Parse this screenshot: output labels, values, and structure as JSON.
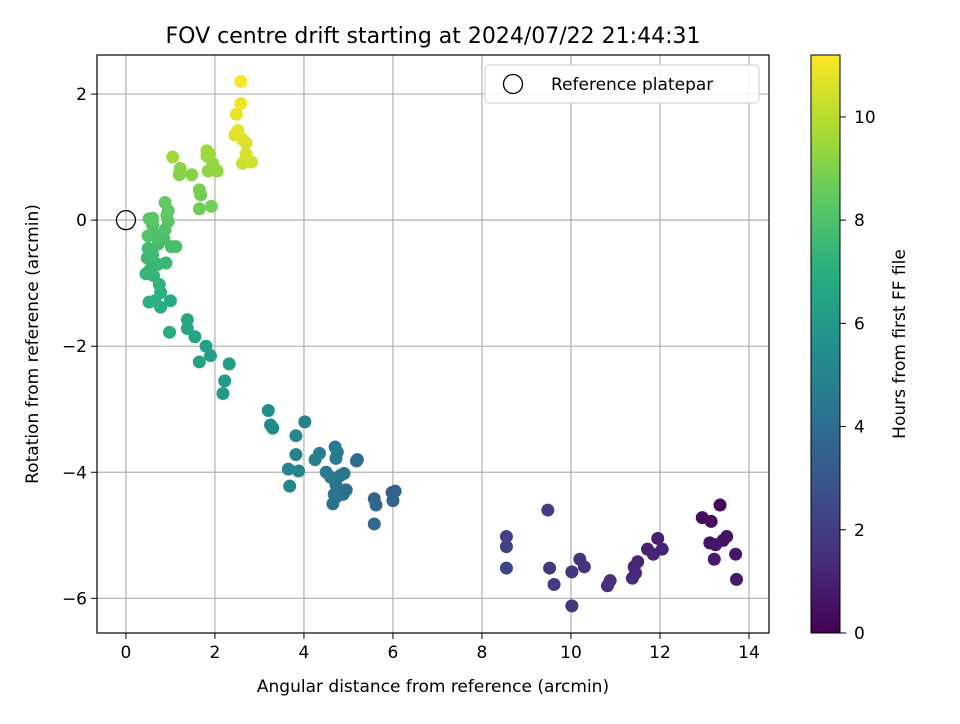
{
  "chart_data": {
    "type": "scatter",
    "title": "FOV centre drift starting at 2024/07/22 21:44:31",
    "xlabel": "Angular distance from reference (arcmin)",
    "ylabel": "Rotation from reference (arcmin)",
    "xlim": [
      -0.65,
      14.45
    ],
    "ylim": [
      -6.55,
      2.62
    ],
    "xticks": [
      0,
      2,
      4,
      6,
      8,
      10,
      12,
      14
    ],
    "yticks": [
      -6,
      -4,
      -2,
      0,
      2
    ],
    "grid": true,
    "legend": {
      "position": "top-right",
      "entries": [
        "Reference platepar"
      ]
    },
    "reference_point": {
      "x": 0,
      "y": 0
    },
    "colorbar": {
      "label": "Hours from first FF file",
      "range": [
        0,
        11.2
      ],
      "ticks": [
        0,
        2,
        4,
        6,
        8,
        10
      ],
      "colormap": "viridis"
    },
    "points": [
      [
        13.35,
        -4.52,
        0.2
      ],
      [
        12.95,
        -4.72,
        0.35
      ],
      [
        13.15,
        -4.78,
        0.4
      ],
      [
        13.5,
        -5.02,
        0.5
      ],
      [
        13.42,
        -5.08,
        0.55
      ],
      [
        13.12,
        -5.12,
        0.6
      ],
      [
        13.25,
        -5.15,
        0.65
      ],
      [
        13.7,
        -5.3,
        0.7
      ],
      [
        13.22,
        -5.38,
        0.75
      ],
      [
        13.72,
        -5.7,
        0.8
      ],
      [
        11.95,
        -5.05,
        0.95
      ],
      [
        11.72,
        -5.22,
        1.05
      ],
      [
        12.05,
        -5.22,
        1.1
      ],
      [
        11.85,
        -5.3,
        1.15
      ],
      [
        11.5,
        -5.42,
        1.2
      ],
      [
        11.42,
        -5.5,
        1.25
      ],
      [
        11.45,
        -5.6,
        1.3
      ],
      [
        11.38,
        -5.68,
        1.35
      ],
      [
        10.88,
        -5.72,
        1.5
      ],
      [
        10.82,
        -5.8,
        1.55
      ],
      [
        10.2,
        -5.38,
        1.65
      ],
      [
        10.3,
        -5.5,
        1.7
      ],
      [
        10.02,
        -5.58,
        1.75
      ],
      [
        10.02,
        -6.12,
        1.8
      ],
      [
        9.52,
        -5.52,
        1.85
      ],
      [
        9.62,
        -5.78,
        1.9
      ],
      [
        9.48,
        -4.6,
        2.0
      ],
      [
        8.55,
        -5.02,
        2.15
      ],
      [
        8.55,
        -5.18,
        2.2
      ],
      [
        8.55,
        -5.52,
        2.25
      ],
      [
        6.05,
        -4.3,
        3.5
      ],
      [
        5.98,
        -4.32,
        3.55
      ],
      [
        6.0,
        -4.45,
        3.6
      ],
      [
        5.58,
        -4.42,
        3.65
      ],
      [
        5.62,
        -4.52,
        3.7
      ],
      [
        5.58,
        -4.82,
        3.75
      ],
      [
        5.2,
        -3.8,
        3.9
      ],
      [
        5.18,
        -3.82,
        3.95
      ],
      [
        4.95,
        -4.28,
        4.05
      ],
      [
        4.88,
        -4.35,
        4.1
      ],
      [
        4.75,
        -4.38,
        4.15
      ],
      [
        4.65,
        -4.5,
        4.2
      ],
      [
        4.68,
        -4.35,
        4.25
      ],
      [
        4.72,
        -4.2,
        4.3
      ],
      [
        4.9,
        -4.02,
        4.35
      ],
      [
        4.82,
        -4.05,
        4.4
      ],
      [
        4.6,
        -4.08,
        4.45
      ],
      [
        4.5,
        -4.0,
        4.5
      ],
      [
        4.7,
        -3.6,
        4.55
      ],
      [
        4.75,
        -3.68,
        4.6
      ],
      [
        4.72,
        -3.78,
        4.65
      ],
      [
        4.35,
        -3.7,
        4.7
      ],
      [
        4.25,
        -3.8,
        4.75
      ],
      [
        4.02,
        -3.2,
        4.85
      ],
      [
        3.82,
        -3.72,
        4.9
      ],
      [
        3.88,
        -3.98,
        4.95
      ],
      [
        3.65,
        -3.95,
        5.05
      ],
      [
        3.68,
        -4.22,
        5.1
      ],
      [
        3.82,
        -3.42,
        5.15
      ],
      [
        3.3,
        -3.3,
        5.3
      ],
      [
        3.25,
        -3.25,
        5.35
      ],
      [
        3.2,
        -3.02,
        5.4
      ],
      [
        2.18,
        -2.75,
        6.1
      ],
      [
        2.22,
        -2.55,
        6.15
      ],
      [
        2.32,
        -2.28,
        6.2
      ],
      [
        1.9,
        -2.15,
        6.3
      ],
      [
        1.65,
        -2.25,
        6.35
      ],
      [
        1.8,
        -2.0,
        6.4
      ],
      [
        1.55,
        -1.85,
        6.55
      ],
      [
        1.38,
        -1.72,
        6.6
      ],
      [
        1.38,
        -1.58,
        6.65
      ],
      [
        1.0,
        -1.28,
        6.8
      ],
      [
        0.98,
        -1.78,
        6.85
      ],
      [
        0.78,
        -1.38,
        6.95
      ],
      [
        0.65,
        -1.28,
        7.05
      ],
      [
        0.52,
        -1.3,
        7.1
      ],
      [
        0.78,
        -1.15,
        7.15
      ],
      [
        0.75,
        -1.02,
        7.2
      ],
      [
        0.62,
        -0.88,
        7.3
      ],
      [
        0.45,
        -0.85,
        7.35
      ],
      [
        0.55,
        -0.78,
        7.4
      ],
      [
        0.72,
        -0.7,
        7.45
      ],
      [
        0.9,
        -0.68,
        7.5
      ],
      [
        0.48,
        -0.6,
        7.55
      ],
      [
        0.6,
        -0.55,
        7.6
      ],
      [
        0.5,
        -0.45,
        7.65
      ],
      [
        0.72,
        -0.38,
        7.75
      ],
      [
        1.02,
        -0.42,
        7.8
      ],
      [
        1.12,
        -0.42,
        7.85
      ],
      [
        0.85,
        -0.3,
        7.9
      ],
      [
        0.72,
        -0.25,
        7.95
      ],
      [
        0.5,
        -0.25,
        8.0
      ],
      [
        0.88,
        -0.15,
        8.05
      ],
      [
        0.6,
        -0.08,
        8.1
      ],
      [
        0.95,
        -0.02,
        8.2
      ],
      [
        0.52,
        0.02,
        8.25
      ],
      [
        0.6,
        0.03,
        8.3
      ],
      [
        0.92,
        0.08,
        8.35
      ],
      [
        0.95,
        0.15,
        8.4
      ],
      [
        0.88,
        0.28,
        8.45
      ],
      [
        1.65,
        0.18,
        8.7
      ],
      [
        1.92,
        0.22,
        8.75
      ],
      [
        1.68,
        0.4,
        8.8
      ],
      [
        1.65,
        0.48,
        8.85
      ],
      [
        1.2,
        0.72,
        9.05
      ],
      [
        1.48,
        0.72,
        9.1
      ],
      [
        1.22,
        0.82,
        9.15
      ],
      [
        1.85,
        0.78,
        9.25
      ],
      [
        2.05,
        0.78,
        9.3
      ],
      [
        1.95,
        0.9,
        9.35
      ],
      [
        1.82,
        1.02,
        9.45
      ],
      [
        1.88,
        1.05,
        9.5
      ],
      [
        1.82,
        1.1,
        9.55
      ],
      [
        1.05,
        1.0,
        9.6
      ],
      [
        2.62,
        0.9,
        10.3
      ],
      [
        2.82,
        0.92,
        10.4
      ],
      [
        2.7,
        1.05,
        10.5
      ],
      [
        2.7,
        1.22,
        10.55
      ],
      [
        2.62,
        1.28,
        10.6
      ],
      [
        2.45,
        1.35,
        10.7
      ],
      [
        2.52,
        1.42,
        10.75
      ],
      [
        2.48,
        1.68,
        10.85
      ],
      [
        2.58,
        1.85,
        10.95
      ],
      [
        2.58,
        2.2,
        11.1
      ]
    ]
  }
}
